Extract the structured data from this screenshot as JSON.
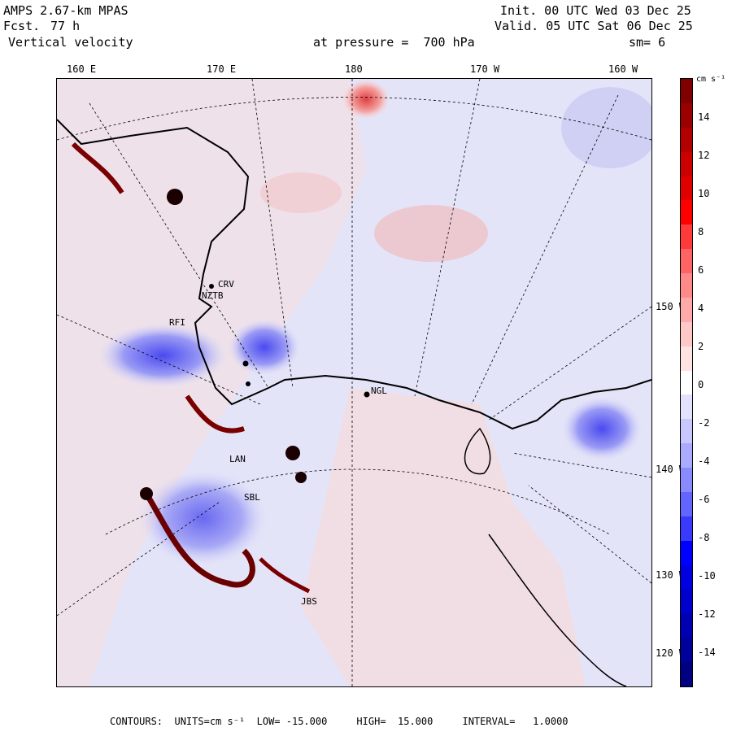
{
  "header": {
    "model": "AMPS 2.67-km MPAS",
    "forecast_label": "Fcst.",
    "forecast_hours": "77 h",
    "variable": "Vertical velocity",
    "init": "Init. 00 UTC Wed 03 Dec 25",
    "valid": "Valid. 05 UTC Sat 06 Dec 25",
    "pressure": "at pressure =  700 hPa",
    "smoothing": "sm= 6"
  },
  "longitude_labels": [
    "160 E",
    "170 E",
    "180",
    "170 W",
    "160 W"
  ],
  "latitude_labels": [
    "150 W",
    "140 W",
    "130 W",
    "120 W"
  ],
  "station_labels": [
    "CRV",
    "NZTB",
    "RFI",
    "NGL",
    "LAN",
    "SBL",
    "JBS"
  ],
  "colorbar": {
    "unit": "cm s⁻¹",
    "ticks": [
      "14",
      "12",
      "10",
      "8",
      "6",
      "4",
      "2",
      "0",
      "-2",
      "-4",
      "-6",
      "-8",
      "-10",
      "-12",
      "-14"
    ],
    "colors": [
      "#800000",
      "#9a0000",
      "#b20000",
      "#cc0000",
      "#e00000",
      "#ff0000",
      "#ff3a3a",
      "#ff6464",
      "#ff8a8a",
      "#ffaaaa",
      "#ffc8c8",
      "#ffe2e2",
      "#ffffff",
      "#e2e2ff",
      "#c8c8ff",
      "#aaaaff",
      "#8a8aff",
      "#6464ff",
      "#3a3aff",
      "#0000ff",
      "#0000e0",
      "#0000cc",
      "#0000b2",
      "#00009a",
      "#000080"
    ]
  },
  "footer": "CONTOURS:  UNITS=cm s⁻¹  LOW= -15.000     HIGH=  15.000     INTERVAL=   1.0000"
}
